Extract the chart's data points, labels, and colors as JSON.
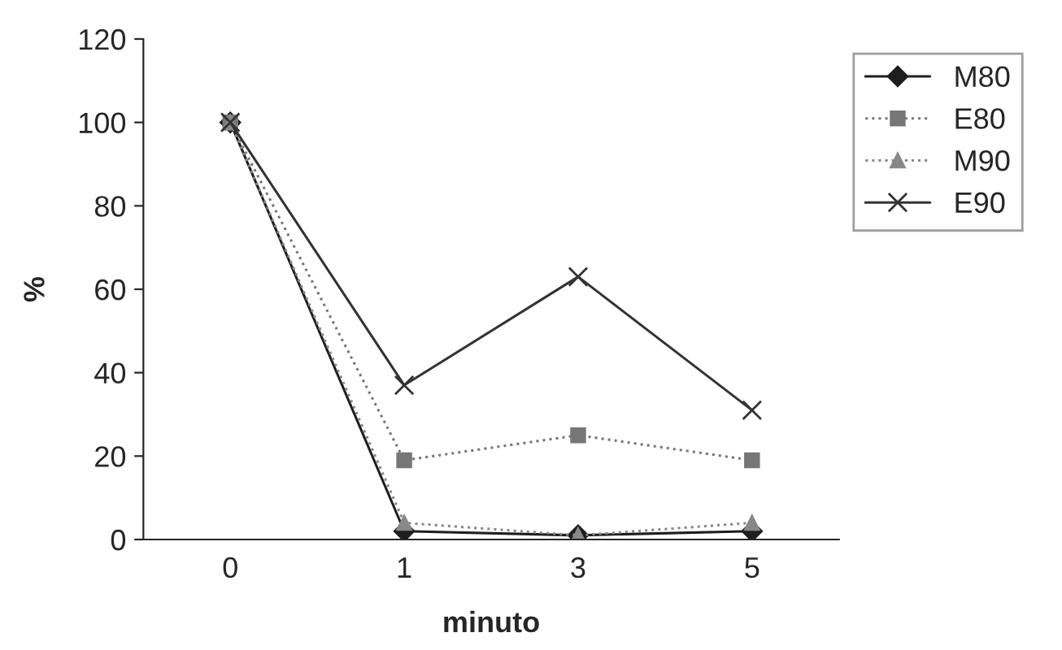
{
  "chart_data": {
    "type": "line",
    "xlabel": "minuto",
    "ylabel": "%",
    "categories": [
      "0",
      "1",
      "3",
      "5"
    ],
    "ylim": [
      0,
      120
    ],
    "yticks": [
      0,
      20,
      40,
      60,
      80,
      100,
      120
    ],
    "grid": false,
    "legend": "top right",
    "series": [
      {
        "name": "M80",
        "color": "#1e1e1e",
        "marker": "diamond",
        "line_style": "solid",
        "values": [
          100,
          2,
          1,
          2
        ]
      },
      {
        "name": "E80",
        "color": "#777777",
        "marker": "square",
        "line_style": "dotted",
        "values": [
          100,
          19,
          25,
          19
        ]
      },
      {
        "name": "M90",
        "color": "#888888",
        "marker": "triangle",
        "line_style": "dotted",
        "values": [
          100,
          4,
          1,
          4
        ]
      },
      {
        "name": "E90",
        "color": "#333333",
        "marker": "cross",
        "line_style": "solid",
        "values": [
          100,
          37,
          63,
          31
        ]
      }
    ]
  }
}
